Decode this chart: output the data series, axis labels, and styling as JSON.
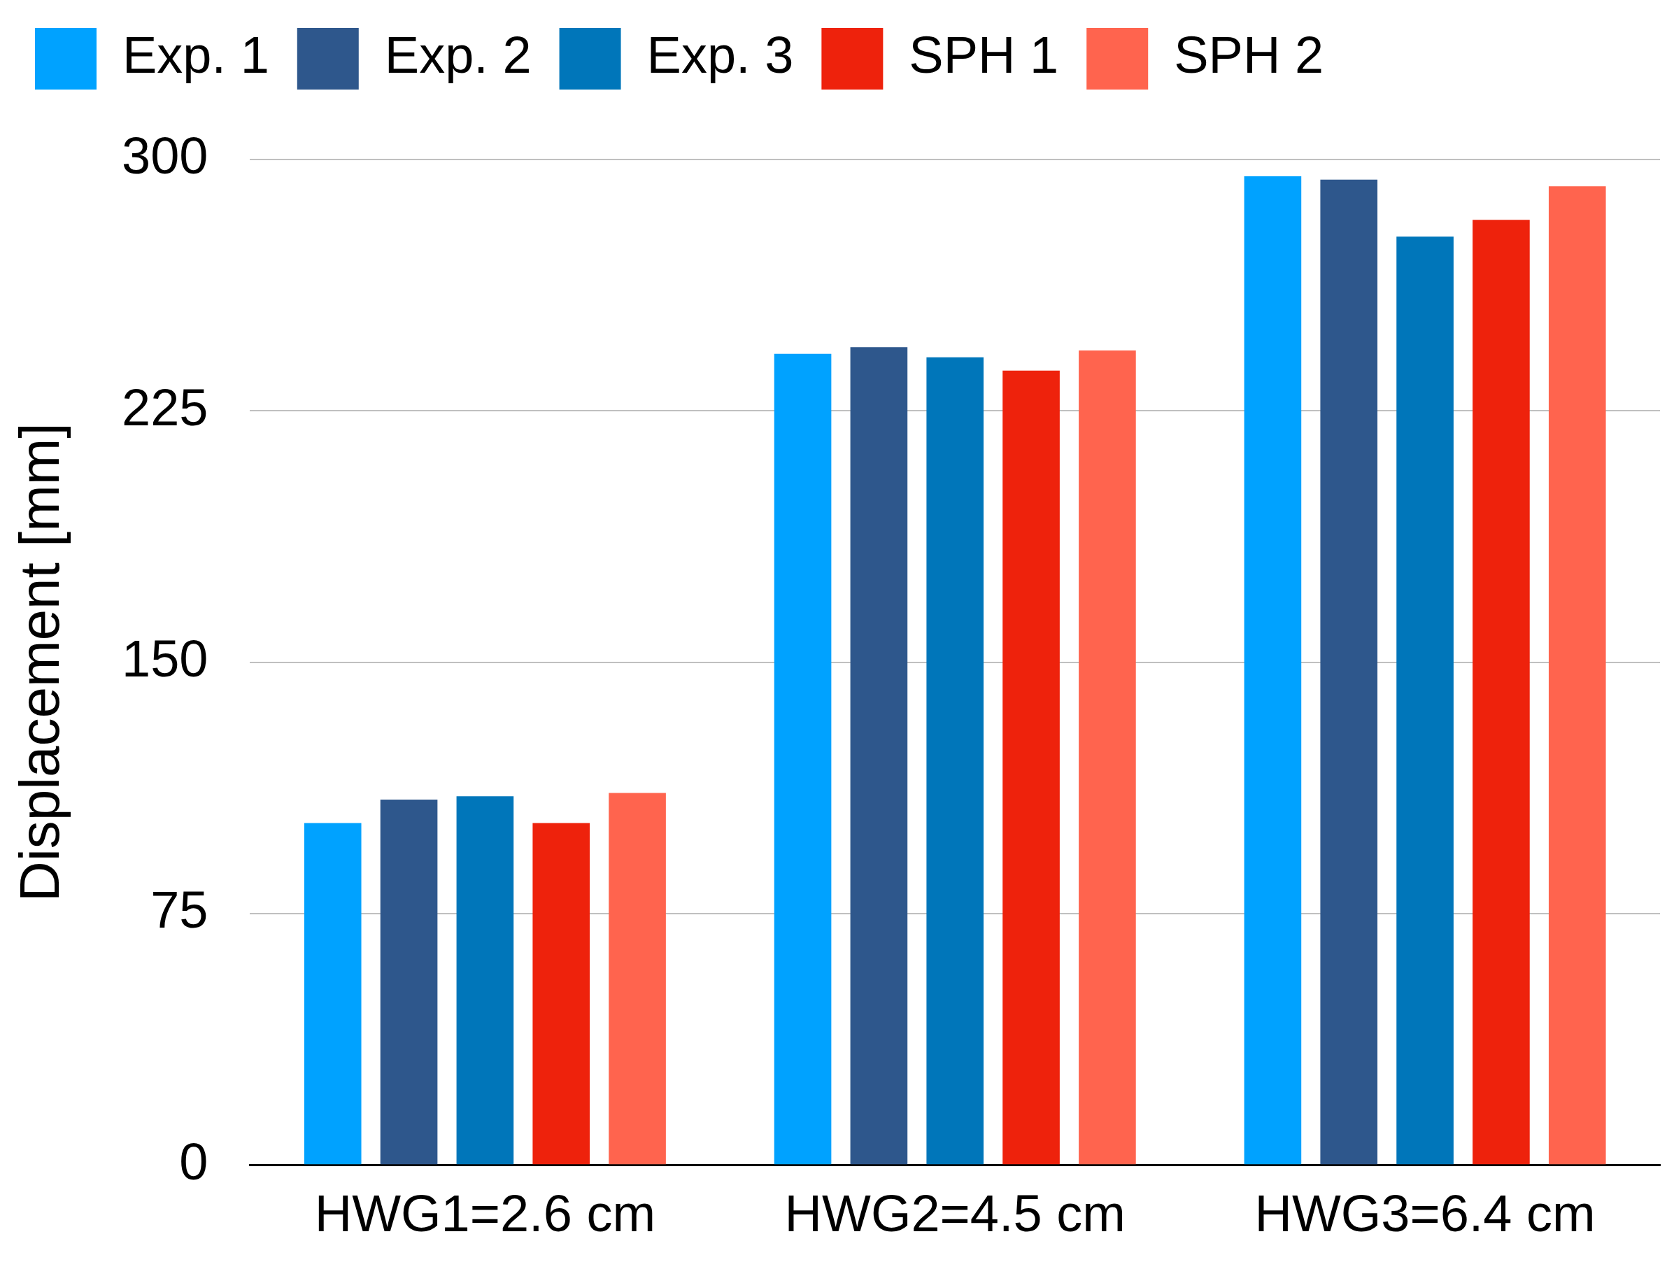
{
  "chart_data": {
    "type": "bar",
    "ylabel": "Displacement [mm]",
    "categories": [
      "HWG1=2.6 cm",
      "HWG2=4.5 cm",
      "HWG3=6.4 cm"
    ],
    "series": [
      {
        "name": "Exp. 1",
        "color": "#00a2ff",
        "values": [
          102,
          242,
          295
        ]
      },
      {
        "name": "Exp. 2",
        "color": "#2e578c",
        "values": [
          109,
          244,
          294
        ]
      },
      {
        "name": "Exp. 3",
        "color": "#0076ba",
        "values": [
          110,
          241,
          277
        ]
      },
      {
        "name": "SPH 1",
        "color": "#ee220c",
        "values": [
          102,
          237,
          282
        ]
      },
      {
        "name": "SPH 2",
        "color": "#ff644e",
        "values": [
          111,
          243,
          292
        ]
      }
    ],
    "ylim": [
      0,
      300
    ],
    "yticks": [
      0,
      75,
      150,
      225,
      300
    ],
    "grid": "y",
    "legend": "top left"
  }
}
